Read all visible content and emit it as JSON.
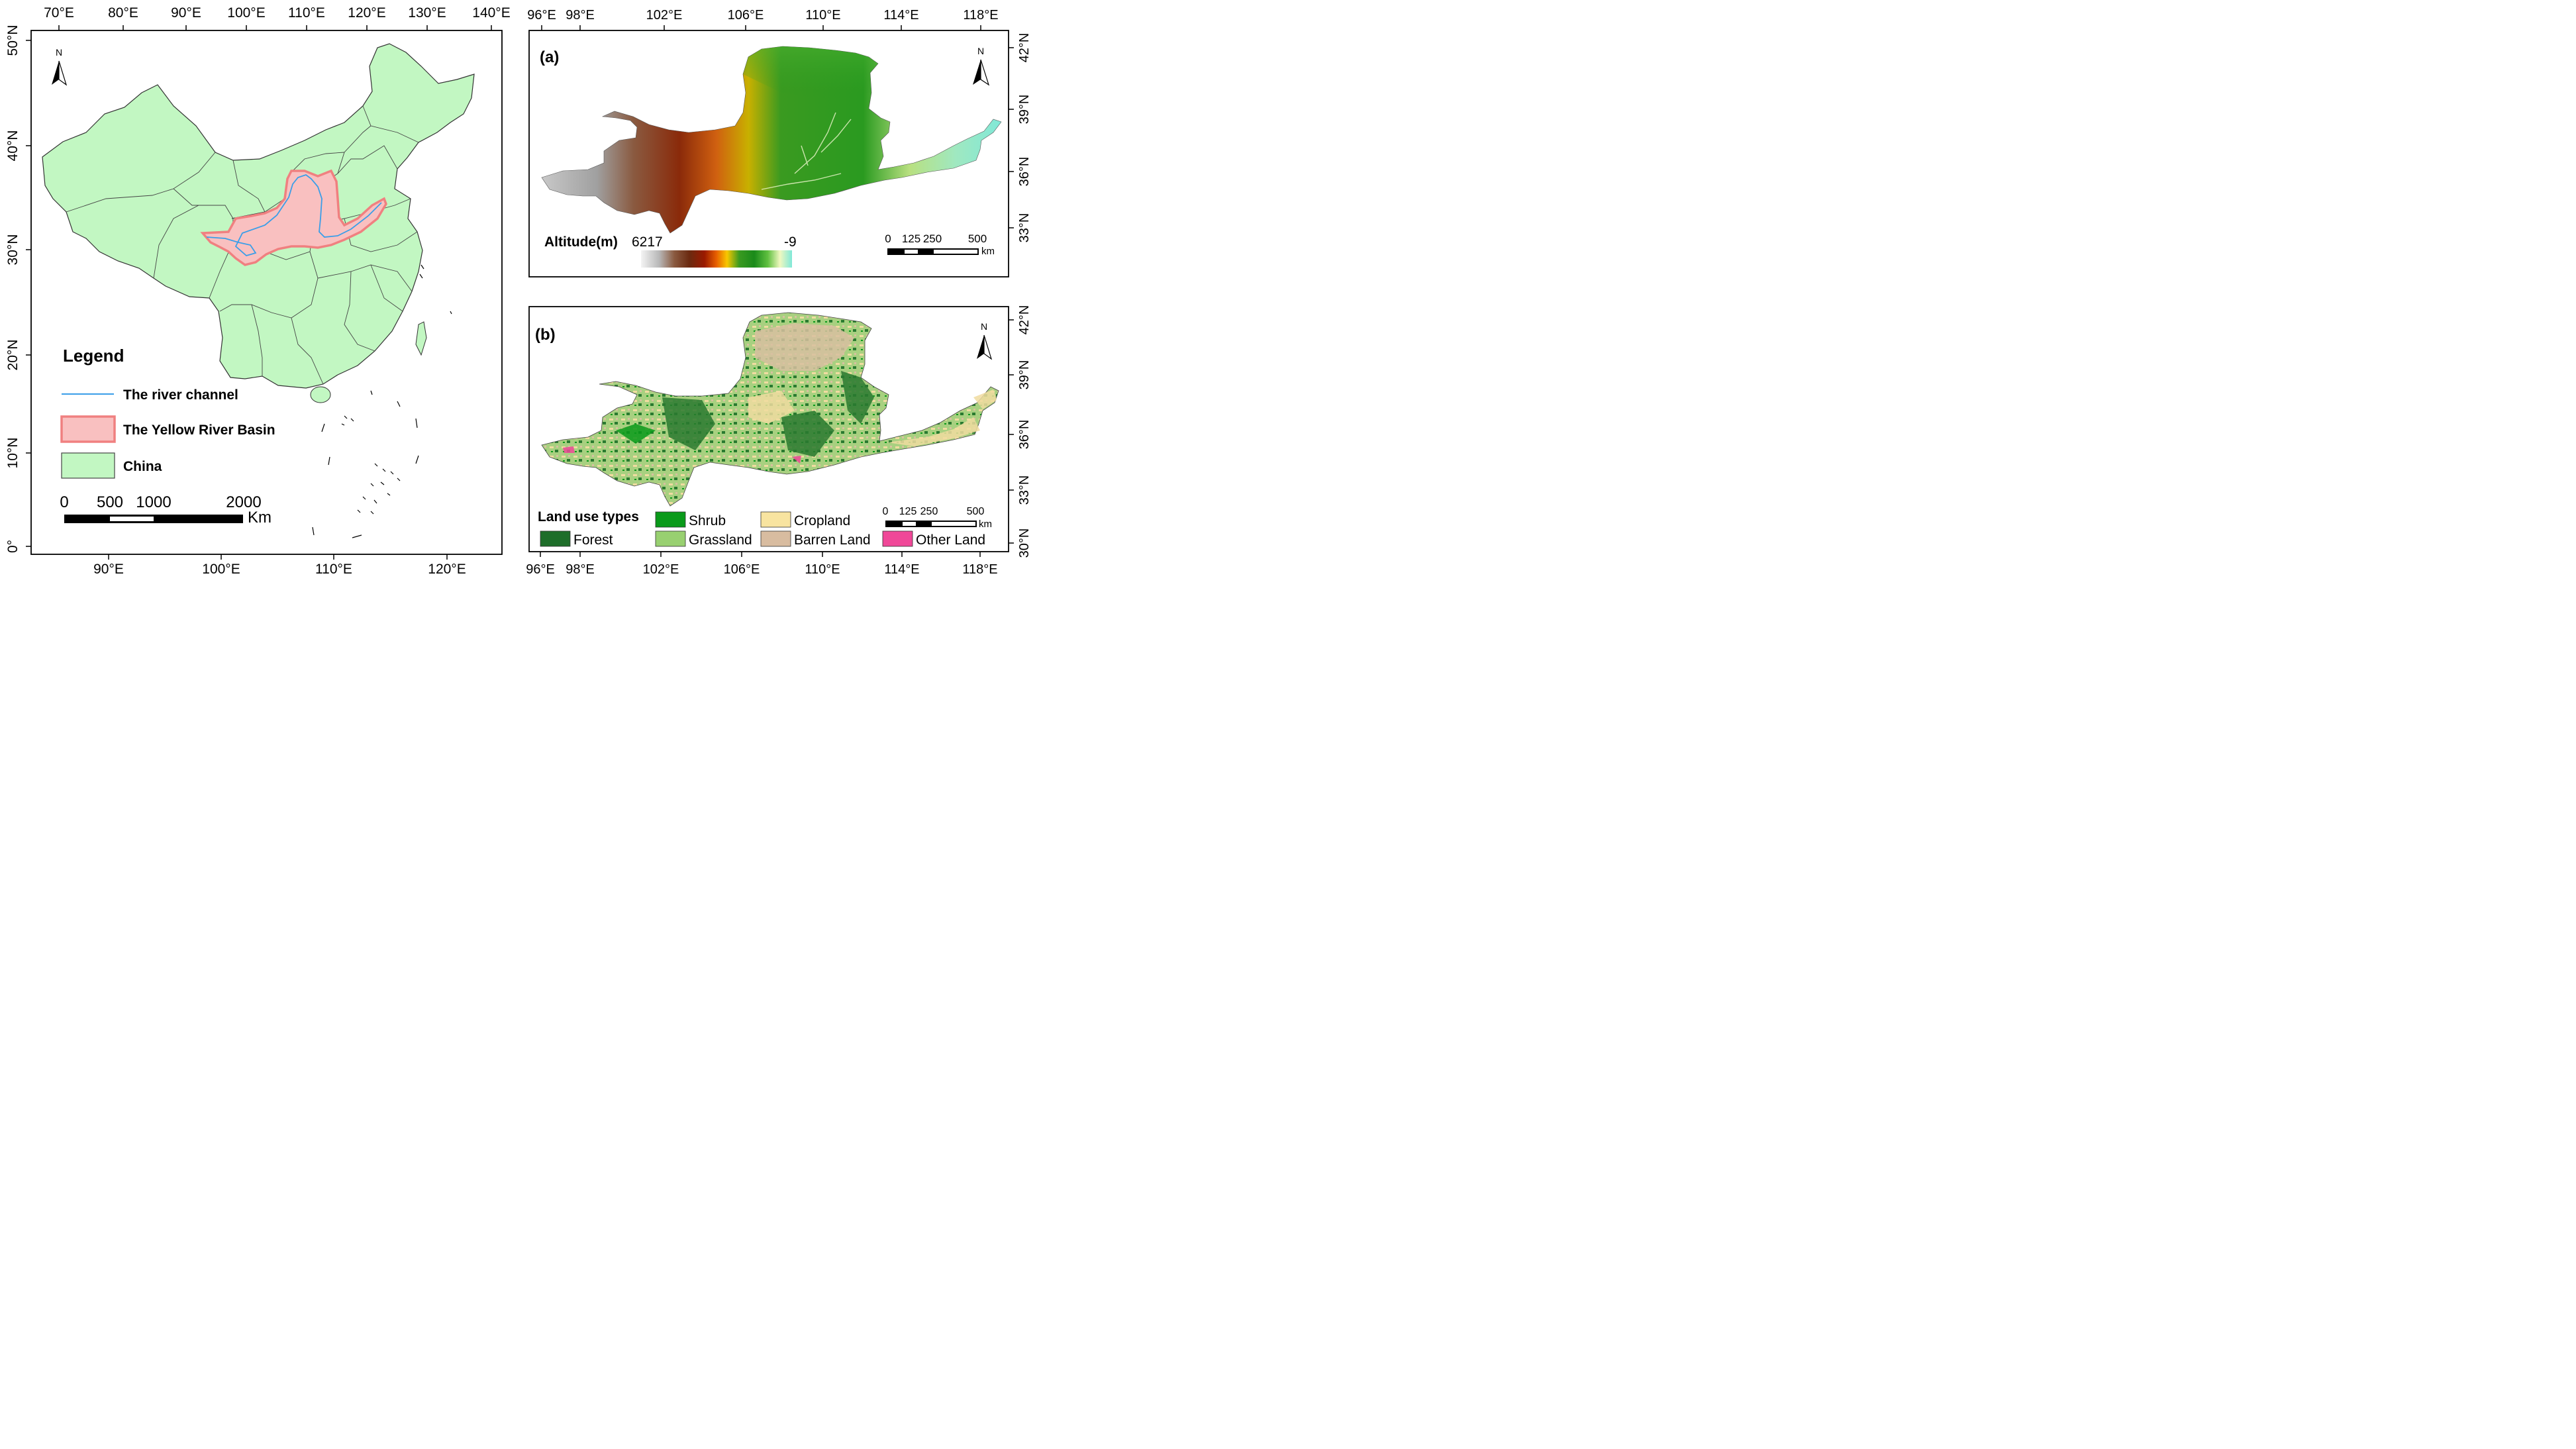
{
  "left_map": {
    "top_lon_labels": [
      "70°E",
      "80°E",
      "90°E",
      "100°E",
      "110°E",
      "120°E",
      "130°E",
      "140°E"
    ],
    "bottom_lon_labels": [
      "90°E",
      "100°E",
      "110°E",
      "120°E"
    ],
    "lat_labels": [
      "50°N",
      "40°N",
      "30°N",
      "20°N",
      "10°N",
      "0°"
    ],
    "north_arrow": "N",
    "legend": {
      "title": "Legend",
      "items": [
        {
          "label": "The river channel",
          "color": "#3a9ee8",
          "symbol": "line"
        },
        {
          "label": "The Yellow River Basin",
          "color": "#f9c0c0",
          "outline": "#f08080",
          "symbol": "patch"
        },
        {
          "label": "China",
          "color": "#c0f8c0",
          "outline": "#404040",
          "symbol": "patch"
        }
      ]
    },
    "scale": {
      "ticks": [
        "0",
        "500",
        "1000",
        "2000"
      ],
      "unit": "Km"
    }
  },
  "panel_a": {
    "label": "(a)",
    "top_lon_labels": [
      "96°E",
      "98°E",
      "102°E",
      "106°E",
      "110°E",
      "114°E",
      "118°E"
    ],
    "right_lat_labels": [
      "42°N",
      "39°N",
      "36°N",
      "33°N"
    ],
    "north_arrow": "N",
    "altitude": {
      "title": "Altitude(m)",
      "max": "6217",
      "min": "-9",
      "colors": [
        "#f4f4f4",
        "#b8b8b8",
        "#8a5a40",
        "#6b2a10",
        "#9a1a00",
        "#e86000",
        "#f8c800",
        "#3a9a20",
        "#1a8a1a",
        "#60c040",
        "#f0f8c0",
        "#80e8d8"
      ]
    },
    "scale": {
      "ticks": [
        "0",
        "125",
        "250",
        "500"
      ],
      "unit": "km"
    }
  },
  "panel_b": {
    "label": "(b)",
    "bottom_lon_labels": [
      "96°E",
      "98°E",
      "102°E",
      "106°E",
      "110°E",
      "114°E",
      "118°E"
    ],
    "right_lat_labels": [
      "42°N",
      "39°N",
      "36°N",
      "33°N",
      "30°N"
    ],
    "north_arrow": "N",
    "land_use": {
      "title": "Land use types",
      "items": [
        {
          "label": "Forest",
          "color": "#1e6e2a"
        },
        {
          "label": "Shrub",
          "color": "#0a9a1a"
        },
        {
          "label": "Cropland",
          "color": "#f8e4a0"
        },
        {
          "label": "Grassland",
          "color": "#98d070"
        },
        {
          "label": "Barren Land",
          "color": "#d8bca0"
        },
        {
          "label": "Other Land",
          "color": "#f04898"
        }
      ]
    },
    "scale": {
      "ticks": [
        "0",
        "125",
        "250",
        "500"
      ],
      "unit": "km"
    }
  }
}
